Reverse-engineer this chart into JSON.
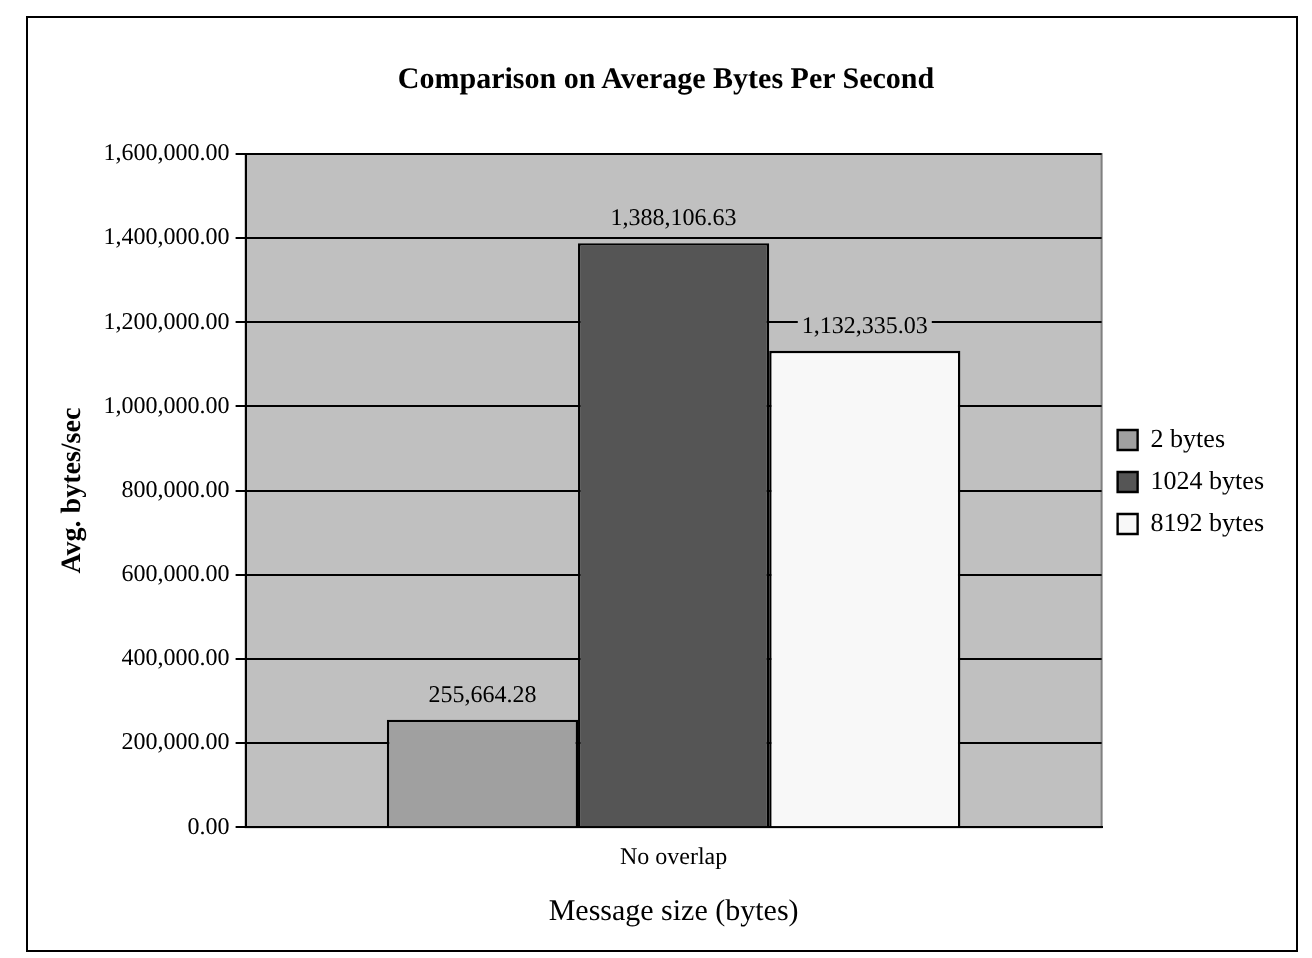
{
  "chart_data": {
    "type": "bar",
    "title": "Comparison on Average Bytes Per Second",
    "xlabel": "Message size (bytes)",
    "ylabel": "Avg. bytes/sec",
    "categories": [
      "No overlap"
    ],
    "series": [
      {
        "name": "2 bytes",
        "color": "#a0a0a0",
        "values": [
          255664.28
        ],
        "value_labels": [
          "255,664.28"
        ]
      },
      {
        "name": "1024 bytes",
        "color": "#555555",
        "values": [
          1388106.63
        ],
        "value_labels": [
          "1,388,106.63"
        ]
      },
      {
        "name": "8192 bytes",
        "color": "#f8f8f8",
        "values": [
          1132335.03
        ],
        "value_labels": [
          "1,132,335.03"
        ]
      }
    ],
    "ylim": [
      0,
      1600000
    ],
    "yticks": [
      {
        "value": 0,
        "label": "0.00"
      },
      {
        "value": 200000,
        "label": "200,000.00"
      },
      {
        "value": 400000,
        "label": "400,000.00"
      },
      {
        "value": 600000,
        "label": "600,000.00"
      },
      {
        "value": 800000,
        "label": "800,000.00"
      },
      {
        "value": 1000000,
        "label": "1,000,000.00"
      },
      {
        "value": 1200000,
        "label": "1,200,000.00"
      },
      {
        "value": 1400000,
        "label": "1,400,000.00"
      },
      {
        "value": 1600000,
        "label": "1,600,000.00"
      }
    ],
    "grid": "y",
    "legend": "right"
  }
}
